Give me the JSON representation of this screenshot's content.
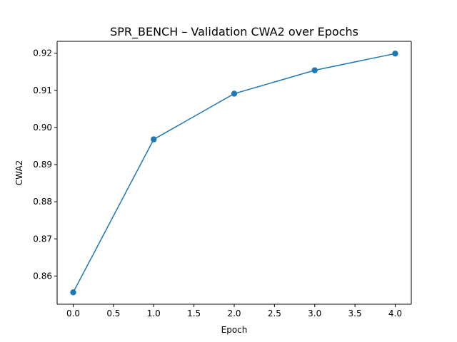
{
  "chart_data": {
    "type": "line",
    "title": "SPR_BENCH – Validation CWA2 over Epochs",
    "xlabel": "Epoch",
    "ylabel": "CWA2",
    "x": [
      0,
      1,
      2,
      3,
      4
    ],
    "series": [
      {
        "values": [
          0.8556,
          0.8968,
          0.9091,
          0.9154,
          0.9199
        ],
        "color": "#1f77b4",
        "marker": "circle"
      }
    ],
    "xlim": [
      -0.2,
      4.2
    ],
    "ylim": [
      0.8524,
      0.9232
    ],
    "xticks": [
      0.0,
      0.5,
      1.0,
      1.5,
      2.0,
      2.5,
      3.0,
      3.5,
      4.0
    ],
    "xtick_labels": [
      "0.0",
      "0.5",
      "1.0",
      "1.5",
      "2.0",
      "2.5",
      "3.0",
      "3.5",
      "4.0"
    ],
    "yticks": [
      0.86,
      0.87,
      0.88,
      0.89,
      0.9,
      0.91,
      0.92
    ],
    "ytick_labels": [
      "0.86",
      "0.87",
      "0.88",
      "0.89",
      "0.90",
      "0.91",
      "0.92"
    ],
    "grid": false,
    "legend": false
  }
}
